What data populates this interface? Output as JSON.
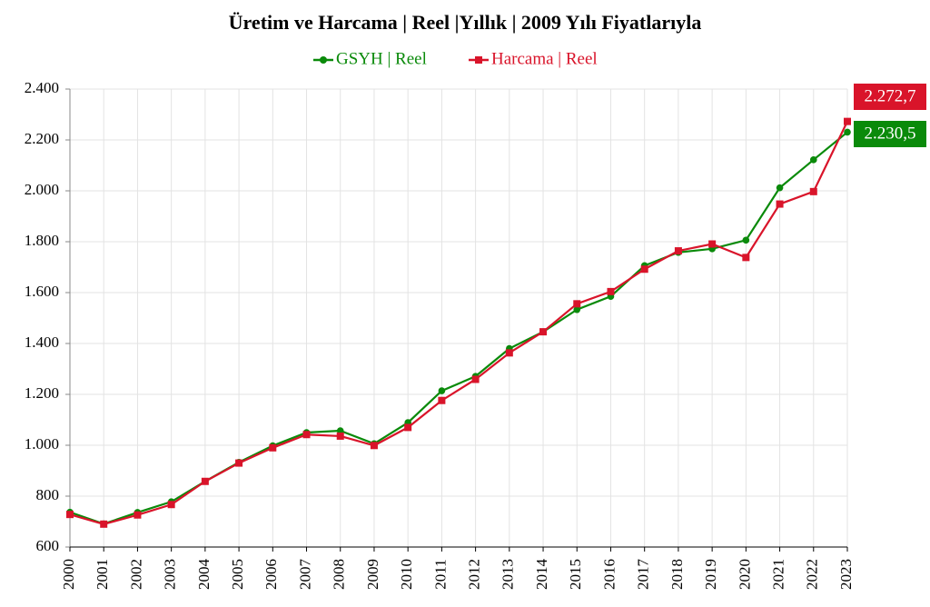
{
  "chart_data": {
    "type": "line",
    "title": "Üretim ve Harcama | Reel |Yıllık | 2009 Yılı Fiyatlarıyla",
    "categories": [
      "2000",
      "2001",
      "2002",
      "2003",
      "2004",
      "2005",
      "2006",
      "2007",
      "2008",
      "2009",
      "2010",
      "2011",
      "2012",
      "2013",
      "2014",
      "2015",
      "2016",
      "2017",
      "2018",
      "2019",
      "2020",
      "2021",
      "2022",
      "2023"
    ],
    "series": [
      {
        "name": "GSYH | Reel",
        "color": "#0a8a0a",
        "marker": "circle",
        "values": [
          737,
          691,
          736,
          778,
          858,
          933,
          998,
          1050,
          1057,
          1006,
          1089,
          1214,
          1271,
          1380,
          1446,
          1533,
          1585,
          1706,
          1758,
          1772,
          1806,
          2012,
          2122,
          2230.5
        ],
        "value_labels": [
          null,
          null,
          null,
          null,
          null,
          null,
          null,
          null,
          null,
          null,
          null,
          null,
          null,
          null,
          null,
          null,
          null,
          null,
          null,
          null,
          null,
          null,
          null,
          "2.230,5"
        ]
      },
      {
        "name": "Harcama | Reel",
        "color": "#d9142a",
        "marker": "square",
        "values": [
          728,
          690,
          726,
          767,
          858,
          930,
          990,
          1042,
          1036,
          999,
          1070,
          1176,
          1259,
          1363,
          1446,
          1556,
          1604,
          1692,
          1764,
          1791,
          1738,
          1948,
          1997,
          2272.7
        ],
        "value_labels": [
          null,
          null,
          null,
          null,
          null,
          null,
          null,
          null,
          null,
          null,
          null,
          null,
          null,
          null,
          null,
          null,
          null,
          null,
          null,
          null,
          null,
          null,
          null,
          "2.272,7"
        ]
      }
    ],
    "ylim": [
      600,
      2400
    ],
    "yticks": [
      600,
      800,
      {
        "value": 1000,
        "label": "1.000"
      },
      {
        "value": 1200,
        "label": "1.200"
      },
      {
        "value": 1400,
        "label": "1.400"
      },
      {
        "value": 1600,
        "label": "1.600"
      },
      {
        "value": 1800,
        "label": "1.800"
      },
      {
        "value": 2000,
        "label": "2.000"
      },
      {
        "value": 2200,
        "label": "2.200"
      },
      {
        "value": 2400,
        "label": "2.400"
      }
    ],
    "grid": true
  }
}
